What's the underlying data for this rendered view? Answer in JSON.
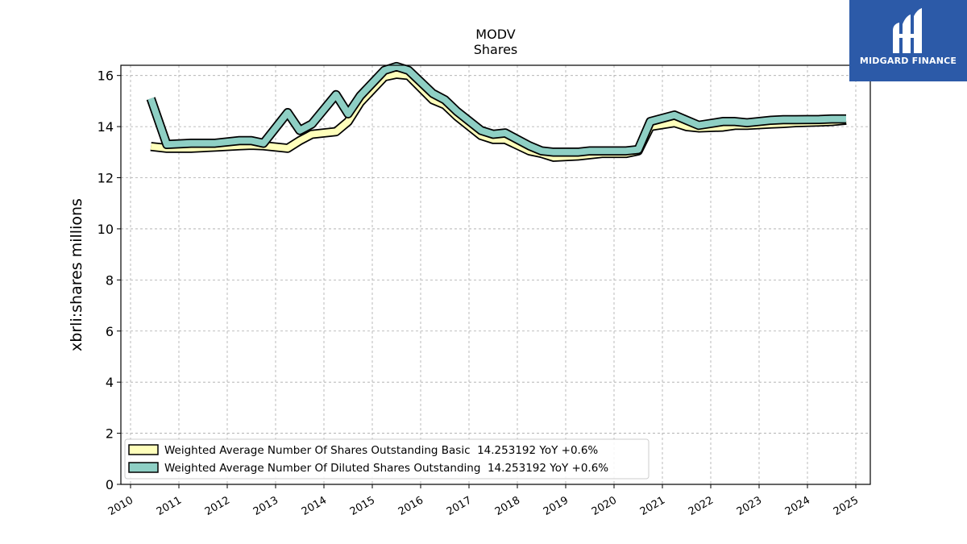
{
  "chart_data": {
    "type": "line",
    "title": "MODV",
    "subtitle": "Shares",
    "ylabel": "xbrli:shares millions",
    "xlabel": "",
    "xlim": [
      2009.8,
      2025.3
    ],
    "ylim": [
      0,
      16.4
    ],
    "yticks": [
      0,
      2,
      4,
      6,
      8,
      10,
      12,
      14,
      16
    ],
    "xticks": [
      2010,
      2011,
      2012,
      2013,
      2014,
      2015,
      2016,
      2017,
      2018,
      2019,
      2020,
      2021,
      2022,
      2023,
      2024,
      2025
    ],
    "grid": true,
    "legend_position": "lower-left",
    "series": [
      {
        "name": "Weighted Average Number Of Shares Outstanding Basic  14.253192 YoY +0.6%",
        "color": "#ffffbb",
        "points": [
          [
            2010.42,
            13.22
          ],
          [
            2010.75,
            13.15
          ],
          [
            2011.25,
            13.15
          ],
          [
            2011.75,
            13.2
          ],
          [
            2012.25,
            13.25
          ],
          [
            2012.5,
            13.27
          ],
          [
            2012.75,
            13.25
          ],
          [
            2013.25,
            13.15
          ],
          [
            2013.5,
            13.45
          ],
          [
            2013.75,
            13.7
          ],
          [
            2014.25,
            13.8
          ],
          [
            2014.5,
            14.2
          ],
          [
            2014.75,
            14.95
          ],
          [
            2015.25,
            15.95
          ],
          [
            2015.5,
            16.05
          ],
          [
            2015.75,
            16.0
          ],
          [
            2016.25,
            15.05
          ],
          [
            2016.5,
            14.85
          ],
          [
            2016.75,
            14.4
          ],
          [
            2017.25,
            13.65
          ],
          [
            2017.5,
            13.5
          ],
          [
            2017.75,
            13.5
          ],
          [
            2018.25,
            13.05
          ],
          [
            2018.5,
            12.95
          ],
          [
            2018.75,
            12.8
          ],
          [
            2019.25,
            12.85
          ],
          [
            2019.5,
            12.9
          ],
          [
            2019.75,
            12.95
          ],
          [
            2020.25,
            12.95
          ],
          [
            2020.5,
            13.05
          ],
          [
            2020.75,
            14.0
          ],
          [
            2021.25,
            14.15
          ],
          [
            2021.5,
            14.0
          ],
          [
            2021.75,
            13.95
          ],
          [
            2022.25,
            13.98
          ],
          [
            2022.5,
            14.05
          ],
          [
            2022.75,
            14.05
          ],
          [
            2023.25,
            14.1
          ],
          [
            2023.5,
            14.12
          ],
          [
            2023.75,
            14.15
          ],
          [
            2024.25,
            14.18
          ],
          [
            2024.5,
            14.2
          ],
          [
            2024.8,
            14.25
          ]
        ]
      },
      {
        "name": "Weighted Average Number Of Diluted Shares Outstanding  14.253192 YoY +0.6%",
        "color": "#8ecfc4",
        "points": [
          [
            2010.42,
            15.1
          ],
          [
            2010.75,
            13.3
          ],
          [
            2011.25,
            13.35
          ],
          [
            2011.75,
            13.35
          ],
          [
            2012.25,
            13.45
          ],
          [
            2012.5,
            13.45
          ],
          [
            2012.75,
            13.35
          ],
          [
            2013.25,
            14.55
          ],
          [
            2013.5,
            13.85
          ],
          [
            2013.75,
            14.1
          ],
          [
            2014.25,
            15.25
          ],
          [
            2014.5,
            14.5
          ],
          [
            2014.75,
            15.2
          ],
          [
            2015.25,
            16.2
          ],
          [
            2015.5,
            16.35
          ],
          [
            2015.75,
            16.2
          ],
          [
            2016.25,
            15.3
          ],
          [
            2016.5,
            15.05
          ],
          [
            2016.75,
            14.6
          ],
          [
            2017.25,
            13.85
          ],
          [
            2017.5,
            13.7
          ],
          [
            2017.75,
            13.75
          ],
          [
            2018.25,
            13.25
          ],
          [
            2018.5,
            13.05
          ],
          [
            2018.75,
            13.0
          ],
          [
            2019.25,
            13.0
          ],
          [
            2019.5,
            13.05
          ],
          [
            2019.75,
            13.05
          ],
          [
            2020.25,
            13.05
          ],
          [
            2020.5,
            13.1
          ],
          [
            2020.75,
            14.2
          ],
          [
            2021.25,
            14.45
          ],
          [
            2021.5,
            14.25
          ],
          [
            2021.75,
            14.05
          ],
          [
            2022.25,
            14.2
          ],
          [
            2022.5,
            14.2
          ],
          [
            2022.75,
            14.15
          ],
          [
            2023.25,
            14.25
          ],
          [
            2023.5,
            14.27
          ],
          [
            2023.75,
            14.27
          ],
          [
            2024.25,
            14.28
          ],
          [
            2024.5,
            14.3
          ],
          [
            2024.8,
            14.3
          ]
        ]
      }
    ]
  },
  "branding": {
    "logo_text": "MIDGARD FINANCE",
    "logo_color": "#2c5aa8"
  }
}
